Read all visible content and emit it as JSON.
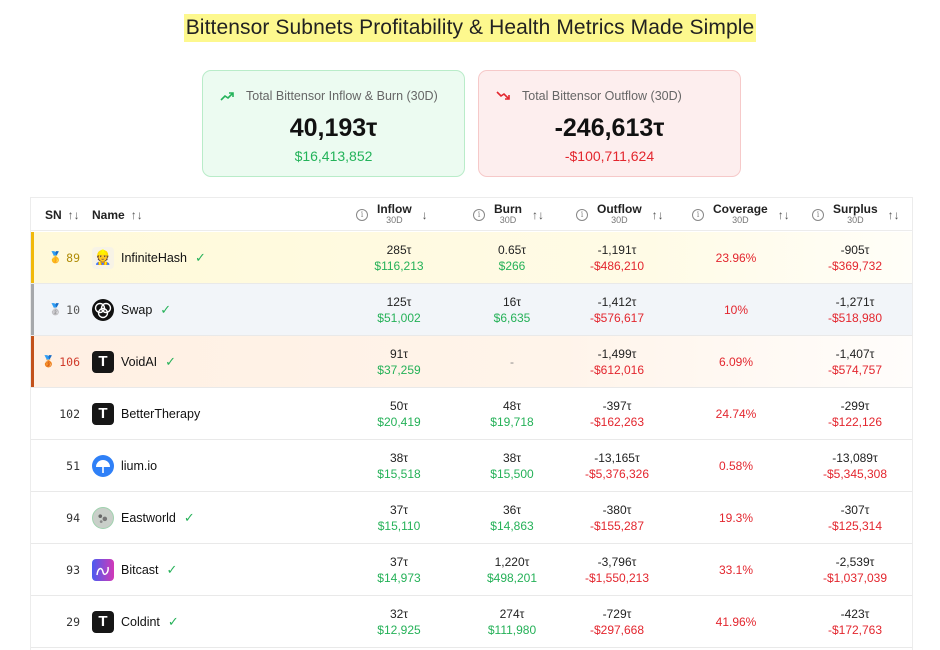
{
  "page_title": "Bittensor Subnets Profitability & Health Metrics Made Simple",
  "summary": {
    "inflow": {
      "icon": "trending-up-icon",
      "label": "Total Bittensor Inflow & Burn (30D)",
      "tao": "40,193τ",
      "usd": "$16,413,852",
      "color": "#23b35a"
    },
    "outflow": {
      "icon": "trending-down-icon",
      "label": "Total Bittensor Outflow (30D)",
      "tao": "-246,613τ",
      "usd": "-$100,711,624",
      "color": "#e3262e"
    }
  },
  "table": {
    "columns": {
      "sn": "SN",
      "name": "Name",
      "inflow": {
        "label": "Inflow",
        "sub": "30D",
        "sort": "descending"
      },
      "burn": {
        "label": "Burn",
        "sub": "30D",
        "sort": "none"
      },
      "outflow": {
        "label": "Outflow",
        "sub": "30D",
        "sort": "none"
      },
      "coverage": {
        "label": "Coverage",
        "sub": "30D",
        "sort": "none"
      },
      "surplus": {
        "label": "Surplus",
        "sub": "30D",
        "sort": "none"
      }
    },
    "rows": [
      {
        "rank": "gold",
        "medal": "gold-medal-icon",
        "sn": "89",
        "name": "InfiniteHash",
        "logo": "chef-logo",
        "verified": true,
        "inflow_tao": "285τ",
        "inflow_usd": "$116,213",
        "burn_tao": "0.65τ",
        "burn_usd": "$266",
        "outflow_tao": "-1,191τ",
        "outflow_usd": "-$486,210",
        "coverage": "23.96%",
        "surplus_tao": "-905τ",
        "surplus_usd": "-$369,732"
      },
      {
        "rank": "silver",
        "medal": "silver-medal-icon",
        "sn": "10",
        "name": "Swap",
        "logo": "swap-logo",
        "verified": true,
        "inflow_tao": "125τ",
        "inflow_usd": "$51,002",
        "burn_tao": "16τ",
        "burn_usd": "$6,635",
        "outflow_tao": "-1,412τ",
        "outflow_usd": "-$576,617",
        "coverage": "10%",
        "surplus_tao": "-1,271τ",
        "surplus_usd": "-$518,980"
      },
      {
        "rank": "bronze",
        "medal": "bronze-medal-icon",
        "sn": "106",
        "name": "VoidAI",
        "logo": "t-logo",
        "verified": true,
        "inflow_tao": "91τ",
        "inflow_usd": "$37,259",
        "burn_tao": "-",
        "burn_usd": "",
        "outflow_tao": "-1,499τ",
        "outflow_usd": "-$612,016",
        "coverage": "6.09%",
        "surplus_tao": "-1,407τ",
        "surplus_usd": "-$574,757"
      },
      {
        "rank": "",
        "medal": "",
        "sn": "102",
        "name": "BetterTherapy",
        "logo": "t-logo",
        "verified": false,
        "inflow_tao": "50τ",
        "inflow_usd": "$20,419",
        "burn_tao": "48τ",
        "burn_usd": "$19,718",
        "outflow_tao": "-397τ",
        "outflow_usd": "-$162,263",
        "coverage": "24.74%",
        "surplus_tao": "-299τ",
        "surplus_usd": "-$122,126"
      },
      {
        "rank": "",
        "medal": "",
        "sn": "51",
        "name": "lium.io",
        "logo": "lium-logo",
        "verified": false,
        "inflow_tao": "38τ",
        "inflow_usd": "$15,518",
        "burn_tao": "38τ",
        "burn_usd": "$15,500",
        "outflow_tao": "-13,165τ",
        "outflow_usd": "-$5,376,326",
        "coverage": "0.58%",
        "surplus_tao": "-13,089τ",
        "surplus_usd": "-$5,345,308"
      },
      {
        "rank": "",
        "medal": "",
        "sn": "94",
        "name": "Eastworld",
        "logo": "eastworld-logo",
        "verified": true,
        "inflow_tao": "37τ",
        "inflow_usd": "$15,110",
        "burn_tao": "36τ",
        "burn_usd": "$14,863",
        "outflow_tao": "-380τ",
        "outflow_usd": "-$155,287",
        "coverage": "19.3%",
        "surplus_tao": "-307τ",
        "surplus_usd": "-$125,314"
      },
      {
        "rank": "",
        "medal": "",
        "sn": "93",
        "name": "Bitcast",
        "logo": "bitcast-logo",
        "verified": true,
        "inflow_tao": "37τ",
        "inflow_usd": "$14,973",
        "burn_tao": "1,220τ",
        "burn_usd": "$498,201",
        "outflow_tao": "-3,796τ",
        "outflow_usd": "-$1,550,213",
        "coverage": "33.1%",
        "surplus_tao": "-2,539τ",
        "surplus_usd": "-$1,037,039"
      },
      {
        "rank": "",
        "medal": "",
        "sn": "29",
        "name": "Coldint",
        "logo": "t-logo",
        "verified": true,
        "inflow_tao": "32τ",
        "inflow_usd": "$12,925",
        "burn_tao": "274τ",
        "burn_usd": "$111,980",
        "outflow_tao": "-729τ",
        "outflow_usd": "-$297,668",
        "coverage": "41.96%",
        "surplus_tao": "-423τ",
        "surplus_usd": "-$172,763"
      }
    ]
  },
  "icons": {
    "sort_both": "↑↓",
    "sort_desc": "↓",
    "info": "i",
    "check": "✓",
    "t_logo_letter": "T",
    "medals": {
      "gold-medal-icon": "🥇",
      "silver-medal-icon": "🥈",
      "bronze-medal-icon": "🥉"
    }
  }
}
